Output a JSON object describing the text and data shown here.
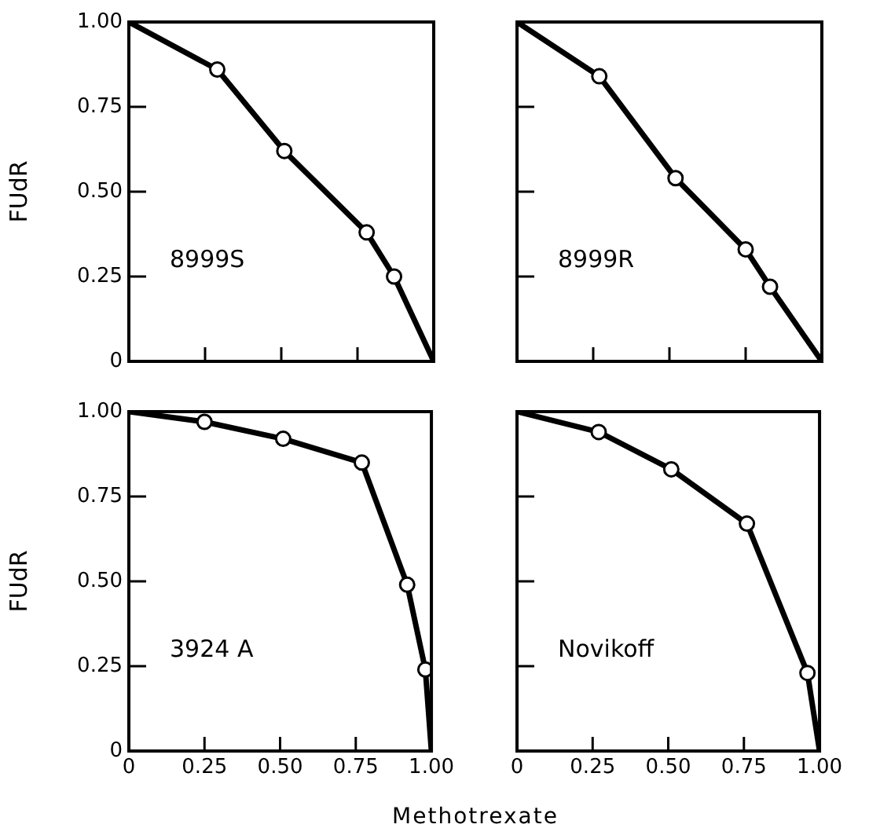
{
  "chart_data": [
    {
      "type": "line",
      "ylabel": "FUdR",
      "annotations": [
        "8999S"
      ],
      "xlim": [
        0,
        1
      ],
      "ylim": [
        0,
        1
      ],
      "xticks": [
        {
          "value": 0.25,
          "label": null
        },
        {
          "value": 0.5,
          "label": null
        },
        {
          "value": 0.75,
          "label": null
        }
      ],
      "yticks": [
        0,
        0.25,
        {
          "value": 0.5,
          "label": "0.50"
        },
        0.75,
        {
          "value": 1,
          "label": "1.00"
        }
      ],
      "tick_labels": "y",
      "grid": false,
      "legend": false,
      "series": [
        {
          "type": "line",
          "color": "#000000",
          "marker": "none",
          "x": [
            0,
            0.29,
            0.51,
            0.78,
            0.87,
            1
          ],
          "values": [
            1,
            0.86,
            0.62,
            0.38,
            0.25,
            0
          ]
        },
        {
          "type": "scatter",
          "color": "#000000",
          "marker": "circle",
          "x": [
            0.29,
            0.51,
            0.78,
            0.87
          ],
          "values": [
            0.86,
            0.62,
            0.38,
            0.25
          ]
        }
      ]
    },
    {
      "type": "line",
      "annotations": [
        "8999R"
      ],
      "xlim": [
        0,
        1
      ],
      "ylim": [
        0,
        1
      ],
      "xticks": [
        {
          "value": 0.25,
          "label": null
        },
        {
          "value": 0.5,
          "label": null
        },
        {
          "value": 0.75,
          "label": null
        }
      ],
      "yticks": [
        {
          "value": 0.25,
          "label": null
        },
        {
          "value": 0.5,
          "label": null
        },
        {
          "value": 0.75,
          "label": null
        }
      ],
      "tick_labels": false,
      "grid": false,
      "legend": false,
      "series": [
        {
          "type": "line",
          "color": "#000000",
          "marker": "none",
          "x": [
            0,
            0.27,
            0.52,
            0.75,
            0.83,
            1
          ],
          "values": [
            1,
            0.84,
            0.54,
            0.33,
            0.22,
            0
          ]
        },
        {
          "type": "scatter",
          "color": "#000000",
          "marker": "circle",
          "x": [
            0.27,
            0.52,
            0.75,
            0.83
          ],
          "values": [
            0.84,
            0.54,
            0.33,
            0.22
          ]
        }
      ]
    },
    {
      "type": "line",
      "ylabel": "FUdR",
      "xlabel": "Methotrexate",
      "annotations": [
        "3924 A"
      ],
      "xlim": [
        0,
        1
      ],
      "ylim": [
        0,
        1
      ],
      "xticks": [
        0,
        0.25,
        {
          "value": 0.5,
          "label": "0.50"
        },
        0.75,
        {
          "value": 1,
          "label": "1.00"
        }
      ],
      "yticks": [
        0,
        0.25,
        {
          "value": 0.5,
          "label": "0.50"
        },
        0.75,
        {
          "value": 1,
          "label": "1.00"
        }
      ],
      "grid": false,
      "legend": false,
      "series": [
        {
          "type": "line",
          "color": "#000000",
          "marker": "none",
          "x": [
            0,
            0.25,
            0.51,
            0.77,
            0.92,
            0.98,
            1
          ],
          "values": [
            1,
            0.97,
            0.92,
            0.85,
            0.49,
            0.24,
            0
          ]
        },
        {
          "type": "scatter",
          "color": "#000000",
          "marker": "circle",
          "x": [
            0.25,
            0.51,
            0.77,
            0.92,
            0.98
          ],
          "values": [
            0.97,
            0.92,
            0.85,
            0.49,
            0.24
          ]
        }
      ]
    },
    {
      "type": "line",
      "annotations": [
        "Novikoff"
      ],
      "xlim": [
        0,
        1
      ],
      "ylim": [
        0,
        1
      ],
      "xticks": [
        0,
        0.25,
        {
          "value": 0.5,
          "label": "0.50"
        },
        0.75,
        {
          "value": 1,
          "label": "1.00"
        }
      ],
      "yticks": [
        {
          "value": 0.25,
          "label": null
        },
        {
          "value": 0.5,
          "label": null
        },
        {
          "value": 0.75,
          "label": null
        }
      ],
      "tick_labels": "x",
      "grid": false,
      "legend": false,
      "series": [
        {
          "type": "line",
          "color": "#000000",
          "marker": "none",
          "x": [
            0,
            0.27,
            0.51,
            0.76,
            0.96,
            1
          ],
          "values": [
            1,
            0.94,
            0.83,
            0.67,
            0.23,
            0
          ]
        },
        {
          "type": "scatter",
          "color": "#000000",
          "marker": "circle",
          "x": [
            0.27,
            0.51,
            0.76,
            0.96
          ],
          "values": [
            0.94,
            0.83,
            0.67,
            0.23
          ]
        }
      ]
    }
  ]
}
